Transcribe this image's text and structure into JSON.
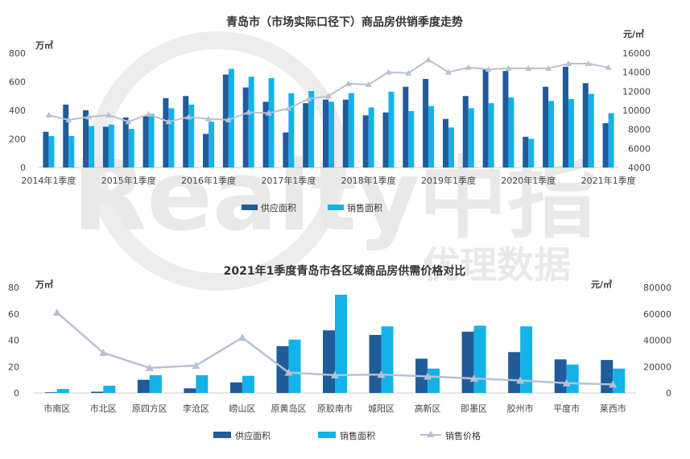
{
  "colors": {
    "supply": "#1f5c99",
    "sales": "#14b2e8",
    "price": "#b8c1d3",
    "axis": "#cccccc"
  },
  "watermark": {
    "text1": "Realty",
    "text2": "中指",
    "text3": "优理数据"
  },
  "chart_data": [
    {
      "type": "bar",
      "title": "青岛市（市场实际口径下）商品房供销季度走势",
      "left_unit": "万㎡",
      "right_unit": "元/㎡",
      "ylim": [
        0,
        800
      ],
      "y2lim": [
        4000,
        16000
      ],
      "yticks": [
        "0",
        "200",
        "400",
        "600",
        "800"
      ],
      "y2ticks": [
        "4000",
        "6000",
        "8000",
        "10000",
        "12000",
        "14000",
        "16000"
      ],
      "xlabels": [
        "2014年1季度",
        "2015年1季度",
        "2016年1季度",
        "2017年1季度",
        "2018年1季度",
        "2019年1季度",
        "2020年1季度",
        "2021年1季度"
      ],
      "series": [
        {
          "name": "供应面积",
          "values": [
            250,
            440,
            400,
            285,
            350,
            360,
            485,
            500,
            235,
            650,
            560,
            460,
            245,
            450,
            475,
            475,
            365,
            385,
            565,
            620,
            340,
            500,
            690,
            675,
            215,
            565,
            705,
            590,
            310
          ]
        },
        {
          "name": "销售面积",
          "values": [
            220,
            220,
            290,
            300,
            270,
            375,
            415,
            440,
            320,
            690,
            635,
            625,
            520,
            535,
            460,
            520,
            420,
            530,
            395,
            430,
            280,
            415,
            450,
            490,
            200,
            465,
            480,
            515,
            380
          ]
        }
      ],
      "line": [
        9500,
        9000,
        9300,
        9500,
        8800,
        9600,
        8800,
        9300,
        9100,
        9000,
        9800,
        9700,
        10200,
        11200,
        11500,
        12800,
        12700,
        14000,
        13900,
        15300,
        14000,
        14500,
        14300,
        14400,
        14400,
        14400,
        14900,
        14900,
        14500
      ],
      "legend": [
        "供应面积",
        "销售面积"
      ]
    },
    {
      "type": "bar",
      "title": "2021年1季度青岛市各区域商品房供需价格对比",
      "left_unit": "万㎡",
      "right_unit": "元/㎡",
      "ylim": [
        0,
        80
      ],
      "y2lim": [
        0,
        80000
      ],
      "yticks": [
        "0",
        "20",
        "40",
        "60",
        "80"
      ],
      "y2ticks": [
        "0",
        "20000",
        "40000",
        "60000",
        "80000"
      ],
      "categories": [
        "市南区",
        "市北区",
        "原四方区",
        "李沧区",
        "崂山区",
        "原黄岛区",
        "原胶南市",
        "城阳区",
        "高新区",
        "即墨区",
        "胶州市",
        "平度市",
        "莱西市"
      ],
      "series": [
        {
          "name": "供应面积",
          "values": [
            0.5,
            1,
            10,
            3.5,
            8,
            35.5,
            47.5,
            44,
            26,
            46.5,
            31,
            25.5,
            25
          ]
        },
        {
          "name": "销售面积",
          "values": [
            3,
            5.5,
            13.5,
            13.5,
            13,
            40.5,
            74.5,
            50.5,
            18.5,
            51,
            50.5,
            21.5,
            18.5
          ]
        },
        {
          "name": "销售价格",
          "values": [
            61000,
            30500,
            19000,
            20800,
            42000,
            15500,
            13500,
            14000,
            12500,
            11000,
            9500,
            7500,
            6500
          ]
        }
      ],
      "legend": [
        "供应面积",
        "销售面积",
        "销售价格"
      ]
    }
  ]
}
